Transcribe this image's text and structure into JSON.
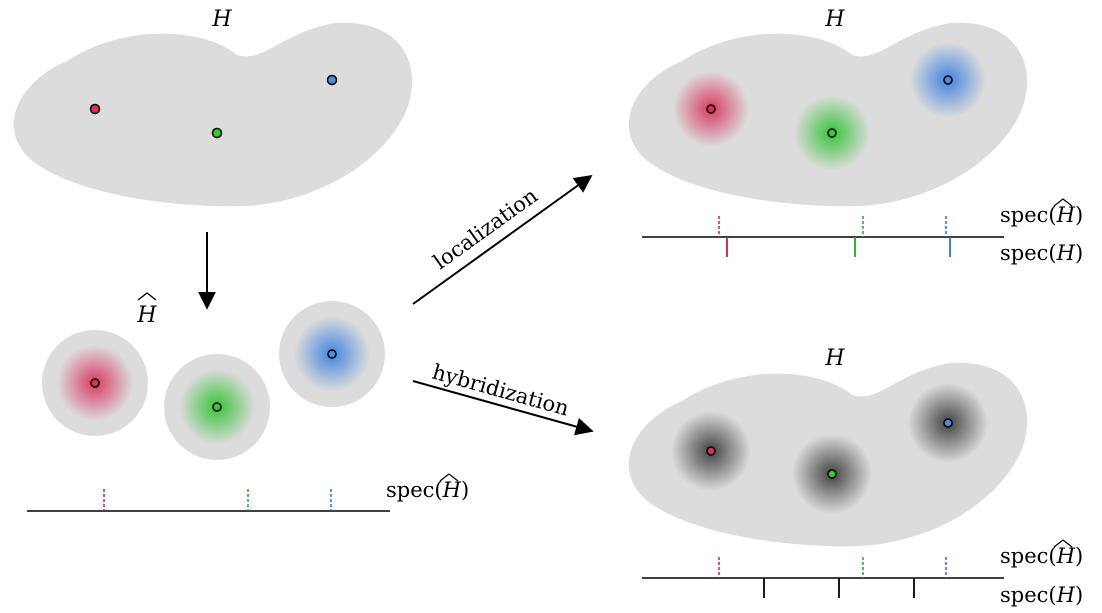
{
  "labels": {
    "H": "H",
    "H_hat": "H",
    "spec_prefix": "spec(",
    "spec_suffix": ")",
    "localization": "localization",
    "hybridization": "hybridization"
  },
  "colors": {
    "red": "#e0304e",
    "green": "#33cc33",
    "blue": "#4a8ee6",
    "blob": "#dcdcdc",
    "red_glow": "#d9305a",
    "green_glow": "#2fc12f",
    "blue_glow": "#3a7fe0",
    "dark_glow": "#3a3a3a",
    "red_tick": "#c0204a",
    "green_tick": "#22a822",
    "blue_tick": "#2f6fd0"
  },
  "sites": [
    "red",
    "green",
    "blue"
  ]
}
